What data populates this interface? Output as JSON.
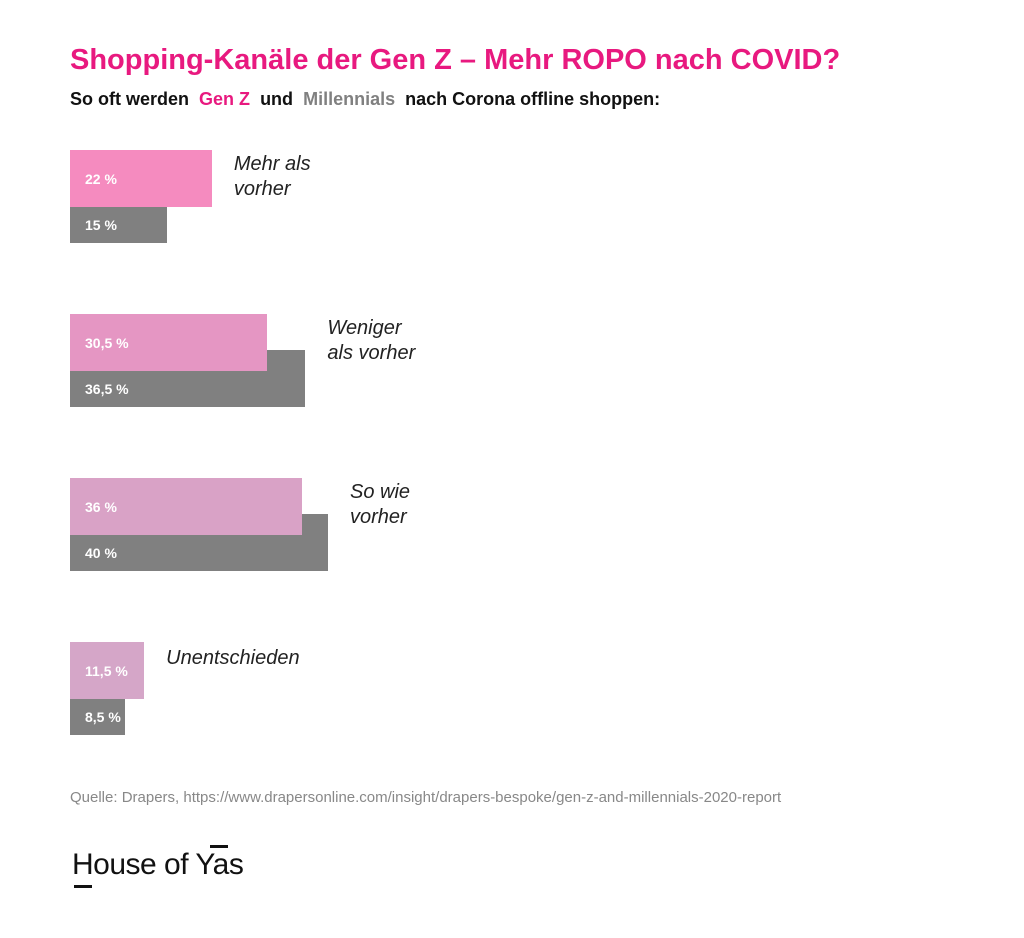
{
  "chart_data": {
    "type": "bar",
    "orientation": "horizontal",
    "title": "Shopping-Kanäle der Gen Z – Mehr ROPO nach COVID?",
    "subtitle_parts": [
      "So oft werden",
      "und",
      "nach Corona offline shoppen:"
    ],
    "categories": [
      "Mehr als\nvorher",
      "Weniger\nals vorher",
      "So wie\nvorher",
      "Unentschieden"
    ],
    "series": [
      {
        "name": "Gen Z",
        "color": "#e8197f",
        "colors": [
          "#f58bbf",
          "#e596c3",
          "#d9a2c6",
          "#d5a6c8"
        ],
        "values": [
          22,
          30.5,
          36,
          11.5
        ],
        "value_labels": [
          "22 %",
          "30,5 %",
          "36 %",
          "11,5 %"
        ]
      },
      {
        "name": "Millennials",
        "color": "#808080",
        "values": [
          15,
          36.5,
          40,
          8.5
        ],
        "value_labels": [
          "15 %",
          "36,5 %",
          "40 %",
          "8,5 %"
        ]
      }
    ],
    "source": "Quelle: Drapers, https://www.drapersonline.com/insight/drapers-bespoke/gen-z-and-millennials-2020-report",
    "logo": "House of Yas"
  }
}
